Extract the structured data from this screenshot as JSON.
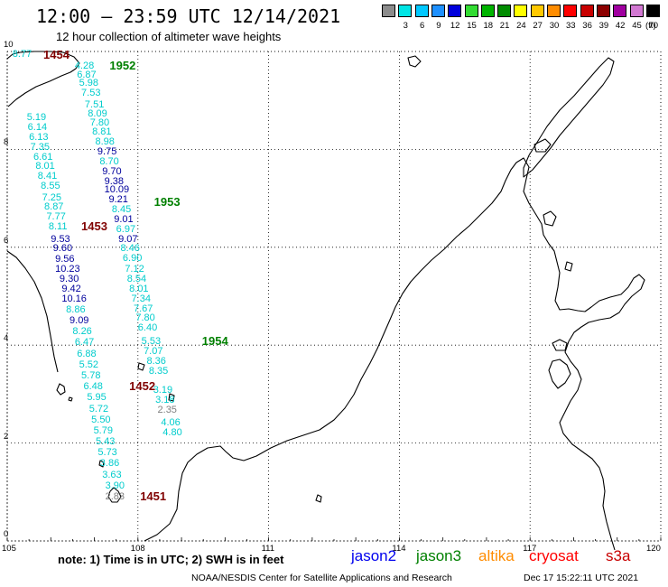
{
  "header": {
    "title": "12:00 – 23:59 UTC 12/14/2021",
    "subtitle": "12 hour collection of altimeter wave heights"
  },
  "colorbar": {
    "unit": "(ft)",
    "bins": [
      {
        "label": "",
        "color": "#8c8c8c"
      },
      {
        "label": "3",
        "color": "#00e5e5"
      },
      {
        "label": "6",
        "color": "#00c8ff"
      },
      {
        "label": "9",
        "color": "#1e90ff"
      },
      {
        "label": "12",
        "color": "#0000dc"
      },
      {
        "label": "15",
        "color": "#32dc32"
      },
      {
        "label": "18",
        "color": "#00b400"
      },
      {
        "label": "21",
        "color": "#008c00"
      },
      {
        "label": "24",
        "color": "#ffff00"
      },
      {
        "label": "27",
        "color": "#ffc800"
      },
      {
        "label": "30",
        "color": "#ff8c00"
      },
      {
        "label": "33",
        "color": "#ff0000"
      },
      {
        "label": "36",
        "color": "#c80000"
      },
      {
        "label": "39",
        "color": "#8c0000"
      },
      {
        "label": "42",
        "color": "#a000a0"
      },
      {
        "label": "45",
        "color": "#d278d2"
      },
      {
        "label": "70",
        "color": "#000000"
      }
    ]
  },
  "map": {
    "lon_labels": [
      "105",
      "108",
      "111",
      "114",
      "117",
      "120"
    ],
    "lat_labels": [
      "0",
      "2",
      "4",
      "6",
      "8",
      "10"
    ],
    "extent": {
      "lon": [
        105,
        120
      ],
      "lat": [
        0,
        10
      ]
    }
  },
  "track_colors": {
    "cyan": "#00cccc",
    "blue": "#00009c",
    "gray": "#808080",
    "pass_green": "#008000",
    "pass_red": "#800000"
  },
  "readings": [
    {
      "text": "8.77",
      "c": "cyan",
      "lon": 105.12,
      "lat": 9.94
    },
    {
      "text": "4.28",
      "c": "cyan",
      "lon": 106.55,
      "lat": 9.7
    },
    {
      "text": "6.87",
      "c": "cyan",
      "lon": 106.6,
      "lat": 9.52
    },
    {
      "text": "5.98",
      "c": "cyan",
      "lon": 106.65,
      "lat": 9.35
    },
    {
      "text": "7.53",
      "c": "cyan",
      "lon": 106.7,
      "lat": 9.16
    },
    {
      "text": "7.51",
      "c": "cyan",
      "lon": 106.78,
      "lat": 8.92
    },
    {
      "text": "8.09",
      "c": "cyan",
      "lon": 106.85,
      "lat": 8.73
    },
    {
      "text": "7.80",
      "c": "cyan",
      "lon": 106.9,
      "lat": 8.55
    },
    {
      "text": "8.81",
      "c": "cyan",
      "lon": 106.95,
      "lat": 8.35
    },
    {
      "text": "8.98",
      "c": "cyan",
      "lon": 107.02,
      "lat": 8.15
    },
    {
      "text": "9.75",
      "c": "blue",
      "lon": 107.07,
      "lat": 7.95
    },
    {
      "text": "8.70",
      "c": "cyan",
      "lon": 107.12,
      "lat": 7.75
    },
    {
      "text": "9.70",
      "c": "blue",
      "lon": 107.18,
      "lat": 7.55
    },
    {
      "text": "9.38",
      "c": "blue",
      "lon": 107.23,
      "lat": 7.35
    },
    {
      "text": "10.09",
      "c": "blue",
      "lon": 107.23,
      "lat": 7.17
    },
    {
      "text": "9.21",
      "c": "blue",
      "lon": 107.33,
      "lat": 6.97
    },
    {
      "text": "8.45",
      "c": "cyan",
      "lon": 107.4,
      "lat": 6.77
    },
    {
      "text": "9.01",
      "c": "blue",
      "lon": 107.45,
      "lat": 6.57
    },
    {
      "text": "6.97",
      "c": "cyan",
      "lon": 107.5,
      "lat": 6.37
    },
    {
      "text": "9.07",
      "c": "blue",
      "lon": 107.55,
      "lat": 6.17
    },
    {
      "text": "8.46",
      "c": "cyan",
      "lon": 107.6,
      "lat": 5.97
    },
    {
      "text": "6.90",
      "c": "cyan",
      "lon": 107.65,
      "lat": 5.77
    },
    {
      "text": "7.12",
      "c": "cyan",
      "lon": 107.7,
      "lat": 5.55
    },
    {
      "text": "8.54",
      "c": "cyan",
      "lon": 107.75,
      "lat": 5.35
    },
    {
      "text": "8.01",
      "c": "cyan",
      "lon": 107.8,
      "lat": 5.15
    },
    {
      "text": "7.34",
      "c": "cyan",
      "lon": 107.85,
      "lat": 4.95
    },
    {
      "text": "7.67",
      "c": "cyan",
      "lon": 107.9,
      "lat": 4.75
    },
    {
      "text": "7.80",
      "c": "cyan",
      "lon": 107.95,
      "lat": 4.55
    },
    {
      "text": "6.40",
      "c": "cyan",
      "lon": 108.0,
      "lat": 4.35
    },
    {
      "text": "5.53",
      "c": "cyan",
      "lon": 108.08,
      "lat": 4.08
    },
    {
      "text": "7.07",
      "c": "cyan",
      "lon": 108.13,
      "lat": 3.88
    },
    {
      "text": "8.36",
      "c": "cyan",
      "lon": 108.2,
      "lat": 3.67
    },
    {
      "text": "8.35",
      "c": "cyan",
      "lon": 108.25,
      "lat": 3.47
    },
    {
      "text": "3.19",
      "c": "cyan",
      "lon": 108.35,
      "lat": 3.08
    },
    {
      "text": "3.18",
      "c": "cyan",
      "lon": 108.4,
      "lat": 2.87
    },
    {
      "text": "2.35",
      "c": "gray",
      "lon": 108.45,
      "lat": 2.67
    },
    {
      "text": "4.06",
      "c": "cyan",
      "lon": 108.53,
      "lat": 2.42
    },
    {
      "text": "4.80",
      "c": "cyan",
      "lon": 108.57,
      "lat": 2.22
    },
    {
      "text": "5.19",
      "c": "cyan",
      "lon": 105.45,
      "lat": 8.65
    },
    {
      "text": "6.14",
      "c": "cyan",
      "lon": 105.47,
      "lat": 8.45
    },
    {
      "text": "6.13",
      "c": "cyan",
      "lon": 105.5,
      "lat": 8.25
    },
    {
      "text": "7.35",
      "c": "cyan",
      "lon": 105.53,
      "lat": 8.05
    },
    {
      "text": "6.61",
      "c": "cyan",
      "lon": 105.6,
      "lat": 7.85
    },
    {
      "text": "8.01",
      "c": "cyan",
      "lon": 105.65,
      "lat": 7.65
    },
    {
      "text": "8.41",
      "c": "cyan",
      "lon": 105.7,
      "lat": 7.45
    },
    {
      "text": "8.55",
      "c": "cyan",
      "lon": 105.77,
      "lat": 7.25
    },
    {
      "text": "7.25",
      "c": "cyan",
      "lon": 105.8,
      "lat": 7.02
    },
    {
      "text": "8.87",
      "c": "cyan",
      "lon": 105.85,
      "lat": 6.82
    },
    {
      "text": "7.77",
      "c": "cyan",
      "lon": 105.9,
      "lat": 6.62
    },
    {
      "text": "8.11",
      "c": "cyan",
      "lon": 105.95,
      "lat": 6.42
    },
    {
      "text": "9.53",
      "c": "blue",
      "lon": 106.0,
      "lat": 6.17
    },
    {
      "text": "9.60",
      "c": "blue",
      "lon": 106.05,
      "lat": 5.97
    },
    {
      "text": "9.56",
      "c": "blue",
      "lon": 106.1,
      "lat": 5.75
    },
    {
      "text": "10.23",
      "c": "blue",
      "lon": 106.1,
      "lat": 5.55
    },
    {
      "text": "9.30",
      "c": "blue",
      "lon": 106.2,
      "lat": 5.35
    },
    {
      "text": "9.42",
      "c": "blue",
      "lon": 106.25,
      "lat": 5.15
    },
    {
      "text": "10.16",
      "c": "blue",
      "lon": 106.25,
      "lat": 4.95
    },
    {
      "text": "8.86",
      "c": "cyan",
      "lon": 106.35,
      "lat": 4.72
    },
    {
      "text": "9.09",
      "c": "blue",
      "lon": 106.43,
      "lat": 4.5
    },
    {
      "text": "8.26",
      "c": "cyan",
      "lon": 106.5,
      "lat": 4.28
    },
    {
      "text": "6.47",
      "c": "cyan",
      "lon": 106.55,
      "lat": 4.05
    },
    {
      "text": "6.88",
      "c": "cyan",
      "lon": 106.6,
      "lat": 3.82
    },
    {
      "text": "5.52",
      "c": "cyan",
      "lon": 106.65,
      "lat": 3.6
    },
    {
      "text": "5.78",
      "c": "cyan",
      "lon": 106.7,
      "lat": 3.38
    },
    {
      "text": "6.48",
      "c": "cyan",
      "lon": 106.75,
      "lat": 3.15
    },
    {
      "text": "5.95",
      "c": "cyan",
      "lon": 106.83,
      "lat": 2.93
    },
    {
      "text": "5.72",
      "c": "cyan",
      "lon": 106.88,
      "lat": 2.7
    },
    {
      "text": "5.50",
      "c": "cyan",
      "lon": 106.93,
      "lat": 2.48
    },
    {
      "text": "5.79",
      "c": "cyan",
      "lon": 106.98,
      "lat": 2.25
    },
    {
      "text": "5.43",
      "c": "cyan",
      "lon": 107.03,
      "lat": 2.03
    },
    {
      "text": "5.73",
      "c": "cyan",
      "lon": 107.08,
      "lat": 1.8
    },
    {
      "text": "3.86",
      "c": "cyan",
      "lon": 107.13,
      "lat": 1.58
    },
    {
      "text": "3.63",
      "c": "cyan",
      "lon": 107.18,
      "lat": 1.35
    },
    {
      "text": "3.90",
      "c": "cyan",
      "lon": 107.25,
      "lat": 1.13
    },
    {
      "text": "2.83",
      "c": "gray",
      "lon": 107.25,
      "lat": 0.9
    }
  ],
  "passes": [
    {
      "text": "1454",
      "c": "pass_red",
      "lon": 105.83,
      "lat": 9.92
    },
    {
      "text": "1952",
      "c": "pass_green",
      "lon": 107.35,
      "lat": 9.7
    },
    {
      "text": "1953",
      "c": "pass_green",
      "lon": 108.37,
      "lat": 6.92
    },
    {
      "text": "1453",
      "c": "pass_red",
      "lon": 106.7,
      "lat": 6.42
    },
    {
      "text": "1954",
      "c": "pass_green",
      "lon": 109.47,
      "lat": 4.08
    },
    {
      "text": "1452",
      "c": "pass_red",
      "lon": 107.8,
      "lat": 3.15
    },
    {
      "text": "1451",
      "c": "pass_red",
      "lon": 108.05,
      "lat": 0.9
    }
  ],
  "note": "note:  1) Time is in UTC;  2) SWH is in feet",
  "legend": [
    {
      "label": "jason2",
      "color": "#0000ee"
    },
    {
      "label": "jason3",
      "color": "#008000"
    },
    {
      "label": "altika",
      "color": "#ff8c00"
    },
    {
      "label": "cryosat",
      "color": "#ff0000"
    },
    {
      "label": "s3a",
      "color": "#c80000"
    }
  ],
  "footer": {
    "left": "NOAA/NESDIS Center for Satellite Applications and Research",
    "right": "Dec 17 15:22:11 UTC 2021"
  }
}
